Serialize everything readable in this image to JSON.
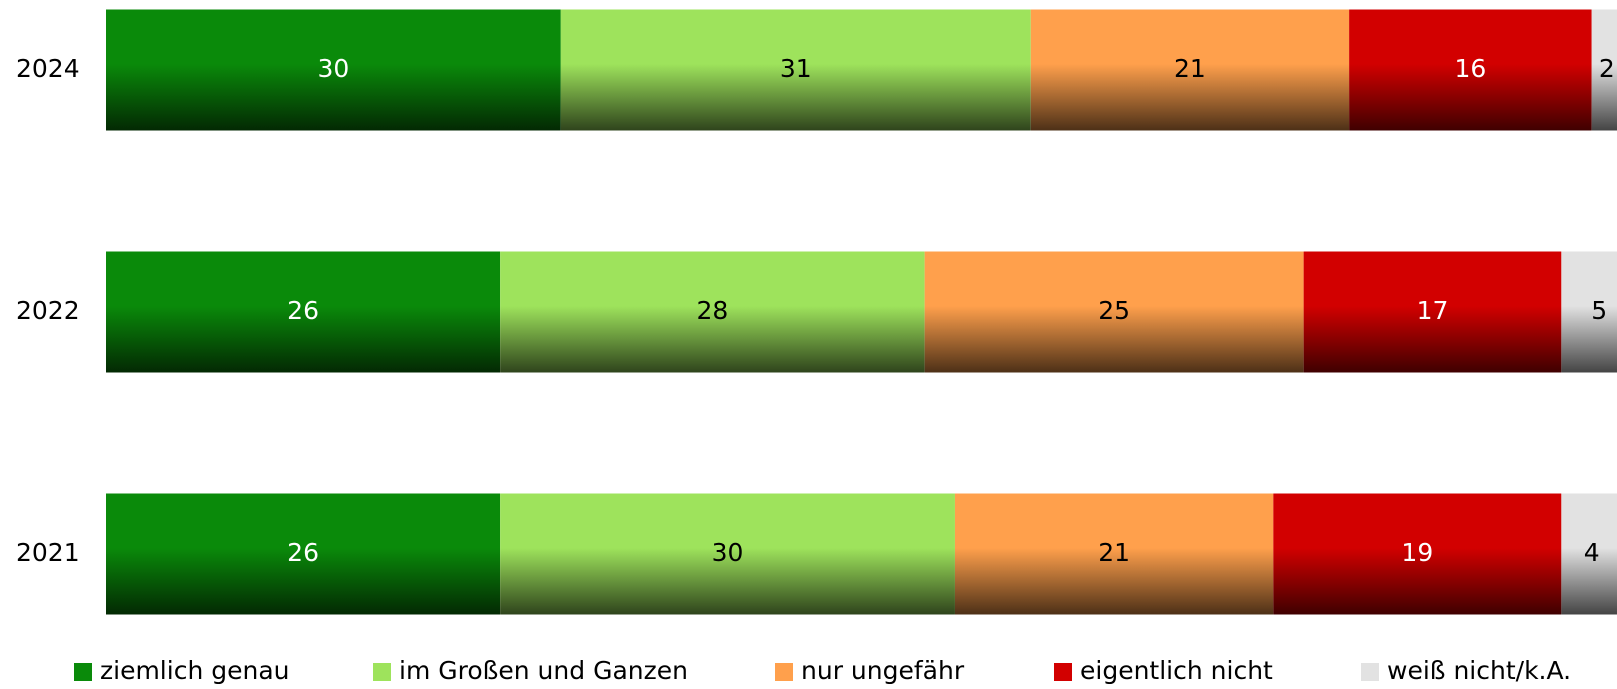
{
  "chart_data": {
    "type": "stacked-barh",
    "categories": [
      "2024",
      "2022",
      "2021"
    ],
    "series": [
      {
        "name": "ziemlich genau",
        "color": "#0a8a0a",
        "values": [
          30,
          26,
          26
        ]
      },
      {
        "name": "im Großen und Ganzen",
        "color": "#9ee35c",
        "values": [
          31,
          28,
          30
        ]
      },
      {
        "name": "nur ungefähr",
        "color": "#ffa04c",
        "values": [
          21,
          25,
          21
        ]
      },
      {
        "name": "eigentlich nicht",
        "color": "#d20000",
        "values": [
          16,
          17,
          19
        ]
      },
      {
        "name": "weiß nicht/k.A.",
        "color": "#e2e2e2",
        "values": [
          2,
          5,
          4
        ]
      }
    ],
    "legend": "bottom"
  }
}
